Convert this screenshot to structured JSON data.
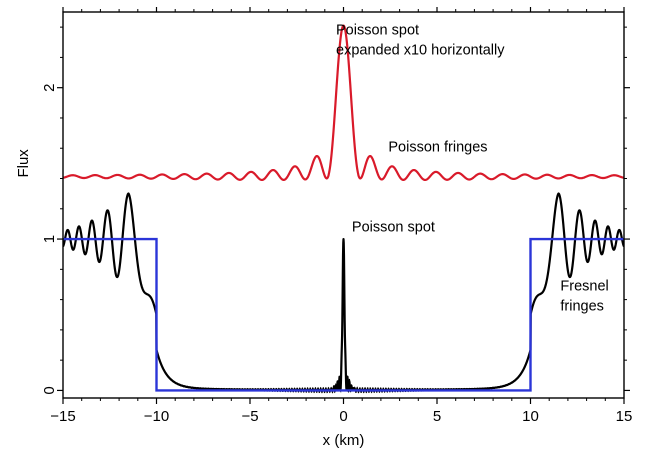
{
  "chart_data": {
    "type": "line",
    "title": "",
    "xlabel": "x (km)",
    "ylabel": "Flux",
    "xlim": [
      -15,
      15
    ],
    "ylim": [
      -0.05,
      2.5
    ],
    "xticks": [
      -15,
      -10,
      -5,
      0,
      5,
      10,
      15
    ],
    "yticks": [
      0,
      1,
      2
    ],
    "xtick_labels": [
      "−15",
      "−10",
      "−5",
      "0",
      "5",
      "10",
      "15"
    ],
    "ytick_labels": [
      "0",
      "1",
      "2"
    ],
    "grid": false,
    "legend": "none",
    "series": [
      {
        "key": "occultation",
        "color": "#2b35d8",
        "x": [
          -15,
          -10,
          -10,
          10,
          10,
          15
        ],
        "y": [
          1,
          1,
          0,
          0,
          1,
          1
        ]
      },
      {
        "key": "diffraction",
        "color": "#000000",
        "edges_x": [
          -10,
          10
        ],
        "peak_x": 0,
        "peak_y": 1.0,
        "outer_max_y": 1.36,
        "outer_max_x": [
          -11.5,
          11.5
        ],
        "edge_y": 0.25
      },
      {
        "key": "poisson_zoom",
        "color": "#d91a2a",
        "baseline_y": 1.41,
        "peak_x": 0,
        "peak_y": 2.41,
        "first_fringe_y": 1.56,
        "fringe_spacing_x": 1.5
      }
    ],
    "annotations": [
      {
        "lines": [
          "Poisson spot",
          "expanded x10 horizontally"
        ],
        "x": -0.4,
        "y": 2.35
      },
      {
        "lines": [
          "Poisson fringes"
        ],
        "x": 2.4,
        "y": 1.58
      },
      {
        "lines": [
          "Poisson spot"
        ],
        "x": 0.45,
        "y": 1.05
      },
      {
        "lines": [
          "Fresnel",
          "fringes"
        ],
        "x": 11.6,
        "y": 0.66
      }
    ]
  }
}
